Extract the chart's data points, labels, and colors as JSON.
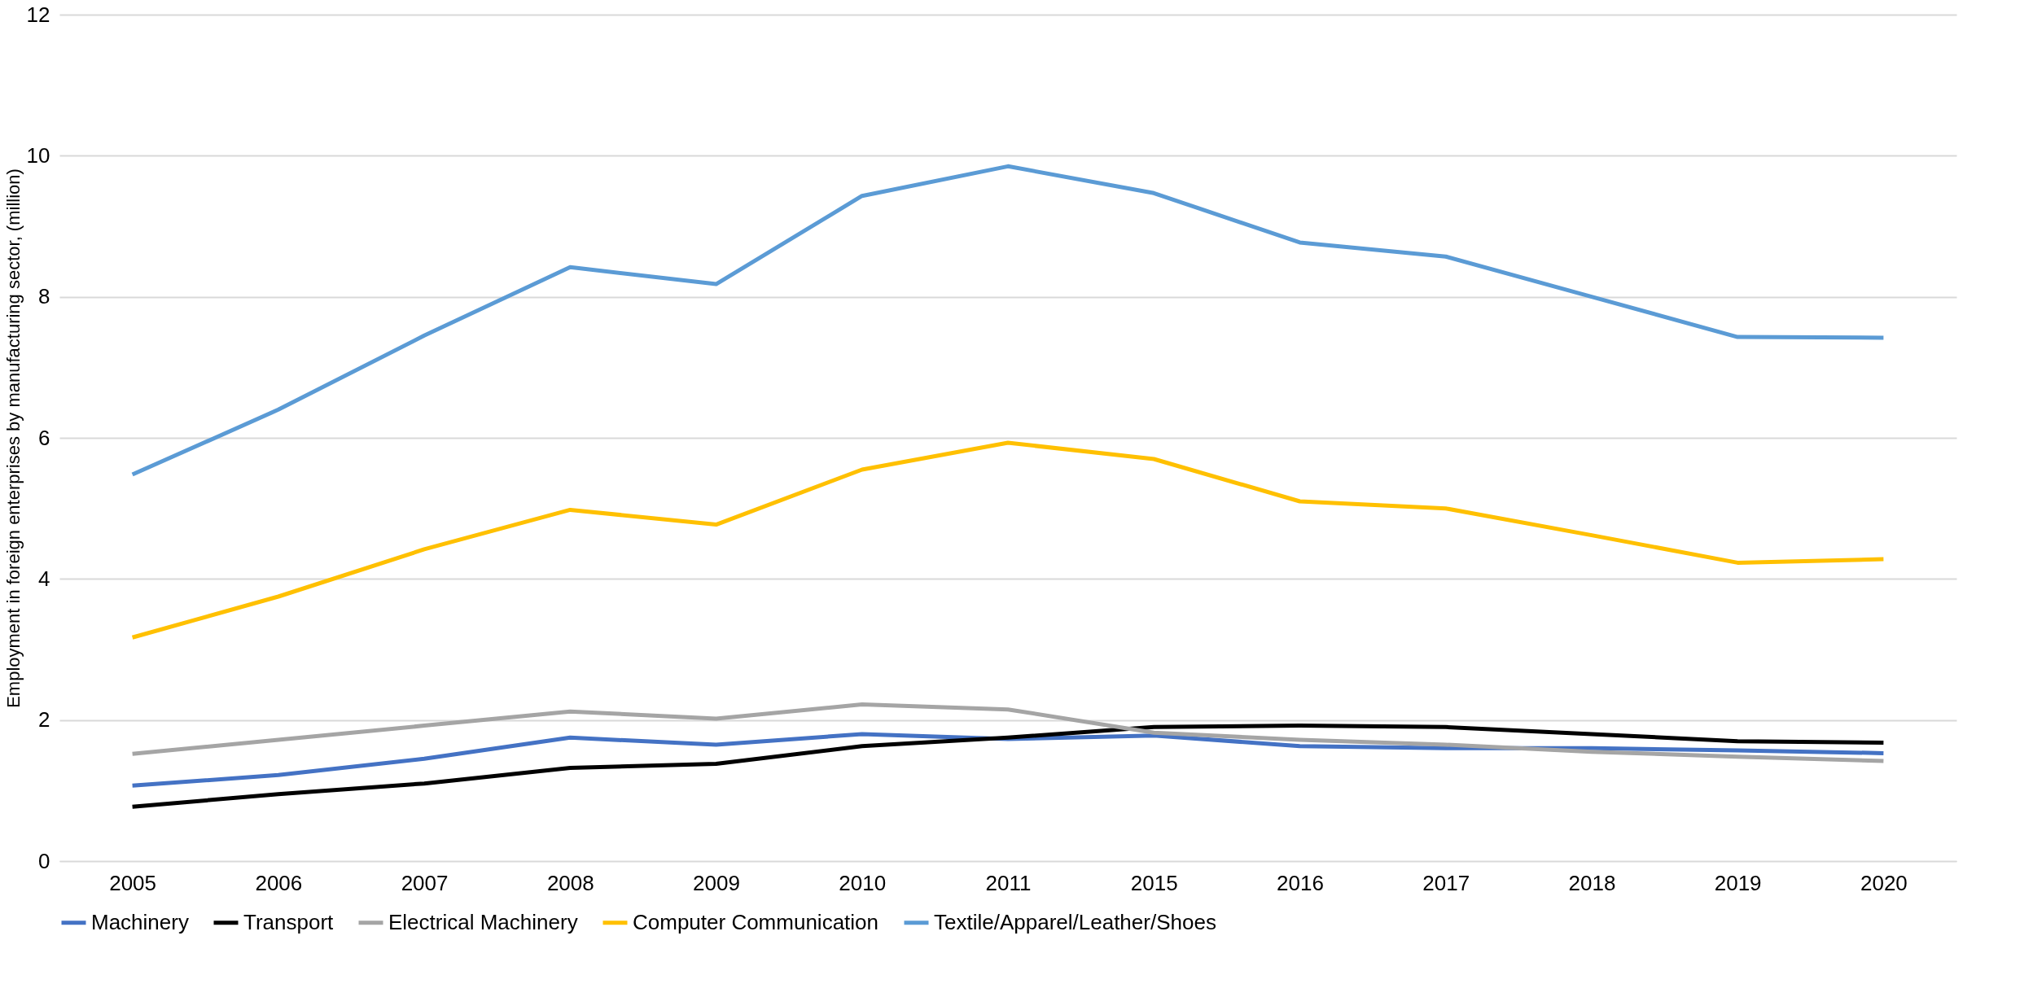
{
  "chart_data": {
    "type": "line",
    "ylabel": "Employment in foreign enterprises by manufacturing sector, (million)",
    "categories": [
      "2005",
      "2006",
      "2007",
      "2008",
      "2009",
      "2010",
      "2011",
      "2015",
      "2016",
      "2017",
      "2018",
      "2019",
      "2020"
    ],
    "series": [
      {
        "name": "Machinery",
        "color": "#4472c4",
        "values": [
          1.07,
          1.22,
          1.45,
          1.75,
          1.65,
          1.8,
          1.73,
          1.78,
          1.63,
          1.6,
          1.6,
          1.57,
          1.53
        ]
      },
      {
        "name": "Transport",
        "color": "#000000",
        "values": [
          0.77,
          0.95,
          1.1,
          1.32,
          1.38,
          1.63,
          1.75,
          1.9,
          1.92,
          1.9,
          1.8,
          1.7,
          1.68
        ]
      },
      {
        "name": "Electrical Machinery",
        "color": "#a5a5a5",
        "values": [
          1.52,
          1.72,
          1.92,
          2.12,
          2.02,
          2.22,
          2.15,
          1.82,
          1.72,
          1.65,
          1.55,
          1.48,
          1.42
        ]
      },
      {
        "name": "Computer Communication",
        "color": "#ffc000",
        "values": [
          3.17,
          3.75,
          4.42,
          4.98,
          4.77,
          5.55,
          5.93,
          5.7,
          5.1,
          5.0,
          4.62,
          4.23,
          4.28
        ]
      },
      {
        "name": "Textile/Apparel/Leather/Shoes",
        "color": "#5b9bd5",
        "values": [
          5.48,
          6.4,
          7.45,
          8.42,
          8.18,
          9.43,
          9.85,
          9.47,
          8.77,
          8.57,
          8.0,
          7.43,
          7.42
        ]
      }
    ],
    "ylim": [
      0,
      12
    ],
    "yticks": [
      0,
      2,
      4,
      6,
      8,
      10,
      12
    ],
    "grid": "y",
    "legend": "bottom",
    "marker": "none",
    "line_style": "solid"
  }
}
